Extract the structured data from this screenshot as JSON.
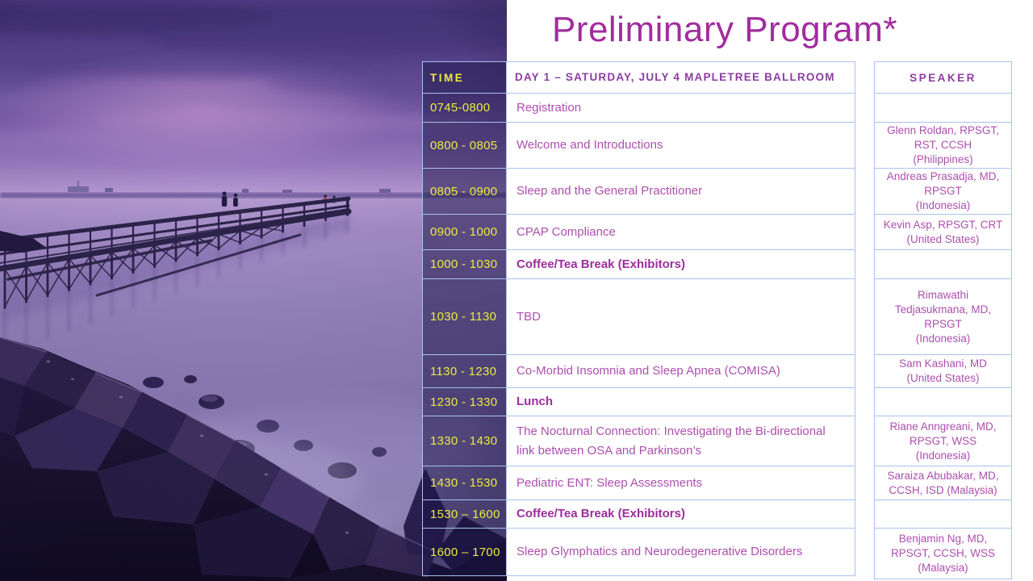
{
  "slide": {
    "title": "Preliminary Program*"
  },
  "program": {
    "headers": {
      "time": "TIME",
      "day": "DAY 1 – SATURDAY, JULY 4 MAPLETREE BALLROOM",
      "speaker": "SPEAKER"
    },
    "rows": [
      {
        "time": "0745-0800",
        "session": "Registration",
        "bold": false,
        "speaker": "",
        "country": ""
      },
      {
        "time": "0800 - 0805",
        "session": "Welcome and Introductions",
        "bold": false,
        "speaker": "Glenn Roldan, RPSGT, RST, CCSH",
        "country": "(Philippines)"
      },
      {
        "time": "0805 - 0900",
        "session": "Sleep and the General Practitioner",
        "bold": false,
        "speaker": "Andreas Prasadja, MD, RPSGT",
        "country": "(Indonesia)"
      },
      {
        "time": "0900 - 1000",
        "session": "CPAP Compliance",
        "bold": false,
        "speaker": "Kevin Asp, RPSGT, CRT",
        "country": "(United States)"
      },
      {
        "time": "1000 - 1030",
        "session": "Coffee/Tea Break (Exhibitors)",
        "bold": true,
        "speaker": "",
        "country": ""
      },
      {
        "time": "1030 - 1130",
        "session": "TBD",
        "bold": false,
        "speaker": "Rimawathi Tedjasukmana, MD, RPSGT",
        "country": "(Indonesia)"
      },
      {
        "time": "1130 - 1230",
        "session": "Co-Morbid Insomnia and Sleep Apnea (COMISA)",
        "bold": false,
        "speaker": "Sam Kashani, MD",
        "country": "(United States)"
      },
      {
        "time": "1230 - 1330",
        "session": "Lunch",
        "bold": true,
        "speaker": "",
        "country": ""
      },
      {
        "time": "1330 - 1430",
        "session": "The Nocturnal Connection: Investigating the Bi-directional link between OSA and Parkinson’s",
        "bold": false,
        "speaker": "Riane Anngreani, MD, RPSGT, WSS",
        "country": "(Indonesia)"
      },
      {
        "time": "1430 - 1530",
        "session": "Pediatric ENT:  Sleep Assessments",
        "bold": false,
        "speaker": "Saraiza Abubakar, MD, CCSH, ISD (Malaysia)",
        "country": ""
      },
      {
        "time": "1530 – 1600",
        "session": "Coffee/Tea Break (Exhibitors)",
        "bold": true,
        "speaker": "",
        "country": ""
      },
      {
        "time": "1600 – 1700",
        "session": "Sleep Glymphatics and Neurodegenerative Disorders",
        "bold": false,
        "speaker": "Benjamin Ng, MD, RPSGT, CCSH, WSS",
        "country": "(Malaysia)"
      }
    ]
  },
  "colors": {
    "title_text": "#a12d9e",
    "header_purple": "#8c3da0",
    "session_text": "#ad4fae",
    "session_bold_text": "#9c2d9c",
    "time_text": "#e9eb41",
    "table_border": "#a9c2ee",
    "time_column_overlay": "rgba(28,22,72,0.52)"
  }
}
